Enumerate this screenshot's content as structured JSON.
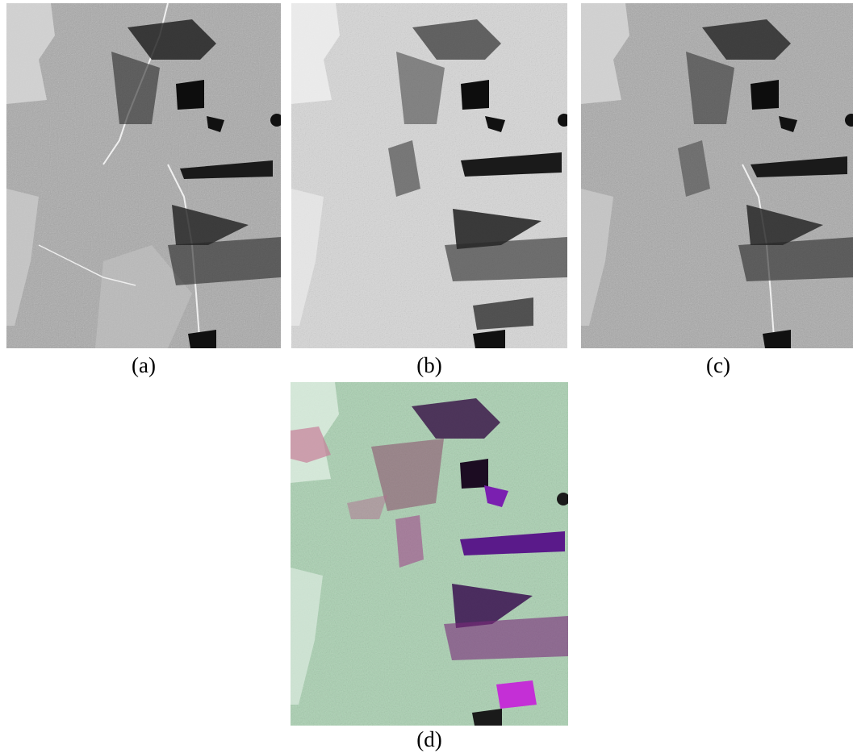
{
  "panels": [
    {
      "id": "a",
      "caption": "(a)",
      "style": "grayscale-sar"
    },
    {
      "id": "b",
      "caption": "(b)",
      "style": "grayscale-sar-bright"
    },
    {
      "id": "c",
      "caption": "(c)",
      "style": "grayscale-sar"
    },
    {
      "id": "d",
      "caption": "(d)",
      "style": "rgb-composite"
    }
  ],
  "colors": {
    "gray_background": "#a9a9a9",
    "bright_background": "#d7d7d7",
    "composite_background": "#a8d0b0",
    "dark_patch": "#141414",
    "purple_patch": "#7a1fb0",
    "magenta_patch": "#c42fd6",
    "pink_patch": "#c87f9a",
    "ridge_white": "#f4f4f4"
  }
}
